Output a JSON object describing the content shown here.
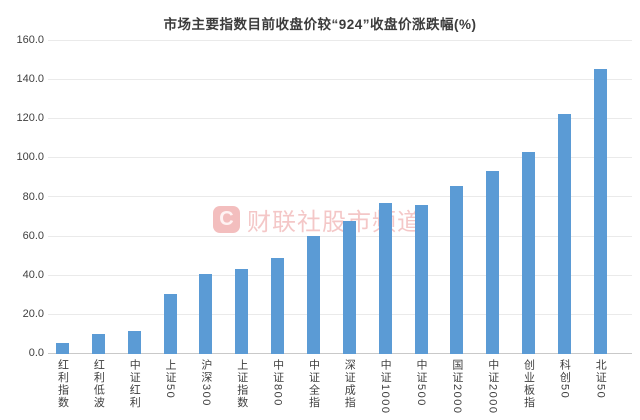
{
  "title": "市场主要指数目前收盘价较“924”收盘价涨跌幅(%)",
  "watermark": {
    "logo_letter": "C",
    "text": "财联社股市频道"
  },
  "chart_data": {
    "type": "bar",
    "title": "市场主要指数目前收盘价较“924”收盘价涨跌幅(%)",
    "categories": [
      "红利指数",
      "红利低波",
      "中证红利",
      "上证50",
      "沪深300",
      "上证指数",
      "中证800",
      "中证全指",
      "深证成指",
      "中证1000",
      "中证500",
      "国证2000",
      "中证2000",
      "创业板指",
      "科创50",
      "北证50"
    ],
    "values": [
      5.6,
      10.4,
      11.6,
      30.5,
      41.0,
      43.3,
      49.3,
      60.5,
      67.8,
      77.0,
      76.2,
      86.0,
      93.5,
      103.5,
      122.5,
      145.5
    ],
    "xlabel": "",
    "ylabel": "",
    "ylim": [
      0,
      160
    ],
    "yticks": [
      0,
      20,
      40,
      60,
      80,
      100,
      120,
      140,
      160
    ],
    "ytick_format": "one_decimal",
    "grid": true,
    "legend": false,
    "bar_color": "#5b9bd5",
    "gridline_color": "#eaeaea",
    "axis_line_color": "#c9c9c9",
    "label_color": "#404040",
    "x_label_orientation": "vertical"
  }
}
